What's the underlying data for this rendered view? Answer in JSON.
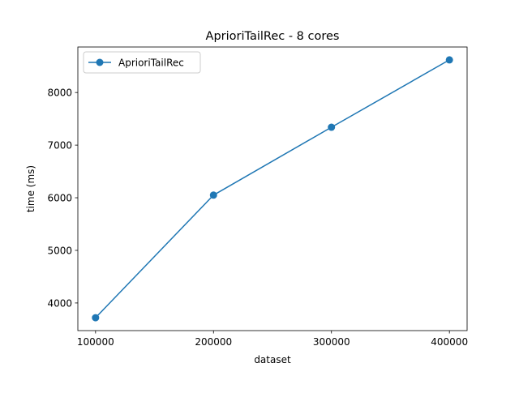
{
  "chart_data": {
    "type": "line",
    "title": "AprioriTailRec - 8 cores",
    "xlabel": "dataset",
    "ylabel": "time (ms)",
    "x": [
      100000,
      200000,
      300000,
      400000
    ],
    "series": [
      {
        "name": "AprioriTailRec",
        "values": [
          3720,
          6050,
          7340,
          8620
        ],
        "color": "#1f77b4",
        "marker": "circle"
      }
    ],
    "xticks": [
      100000,
      200000,
      300000,
      400000
    ],
    "yticks": [
      4000,
      5000,
      6000,
      7000,
      8000
    ],
    "xlim": [
      85000,
      415000
    ],
    "ylim": [
      3475,
      8865
    ],
    "grid": false,
    "legend_position": "top-left"
  }
}
